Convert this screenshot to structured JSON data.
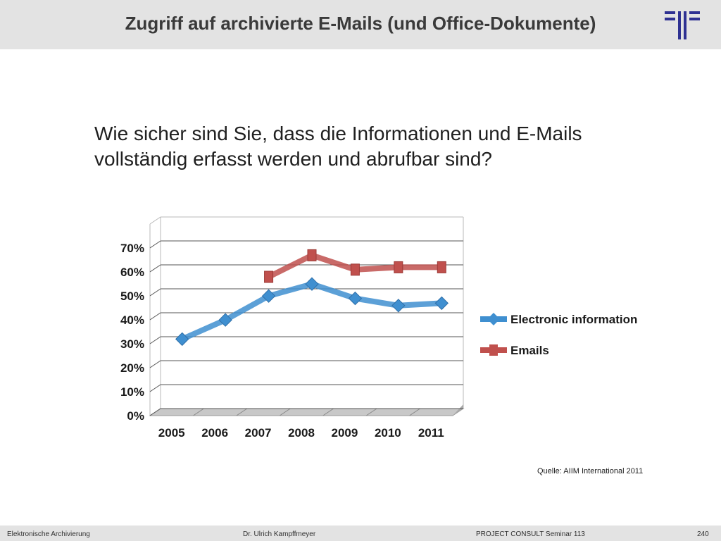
{
  "header": {
    "title": "Zugriff auf archivierte E-Mails (und Office-Dokumente)",
    "logo_icon": "project-consult-logo"
  },
  "question": "Wie sicher sind Sie, dass die Informationen und E-Mails vollständig erfasst werden und abrufbar sind?",
  "source": "Quelle: AIIM International 2011",
  "footer": {
    "left": "Elektronische Archivierung",
    "center": "Dr. Ulrich Kampffmeyer",
    "right": "PROJECT CONSULT Seminar 113",
    "page": "240"
  },
  "colors": {
    "header_bg": "#e3e3e3",
    "electronic_information": "#3f8fd0",
    "emails": "#c0504d",
    "logo": "#2e3192"
  },
  "chart_data": {
    "type": "line",
    "title": "",
    "xlabel": "",
    "ylabel": "",
    "categories": [
      "2005",
      "2006",
      "2007",
      "2008",
      "2009",
      "2010",
      "2011"
    ],
    "yticks": [
      "0%",
      "10%",
      "20%",
      "30%",
      "40%",
      "50%",
      "60%",
      "70%"
    ],
    "ylim": [
      0,
      80
    ],
    "grid": true,
    "legend_position": "right",
    "series": [
      {
        "name": "Electronic information",
        "values": [
          29,
          37,
          47,
          52,
          46,
          43,
          44
        ]
      },
      {
        "name": "Emails",
        "values": [
          null,
          null,
          55,
          64,
          58,
          59,
          59
        ]
      }
    ]
  }
}
